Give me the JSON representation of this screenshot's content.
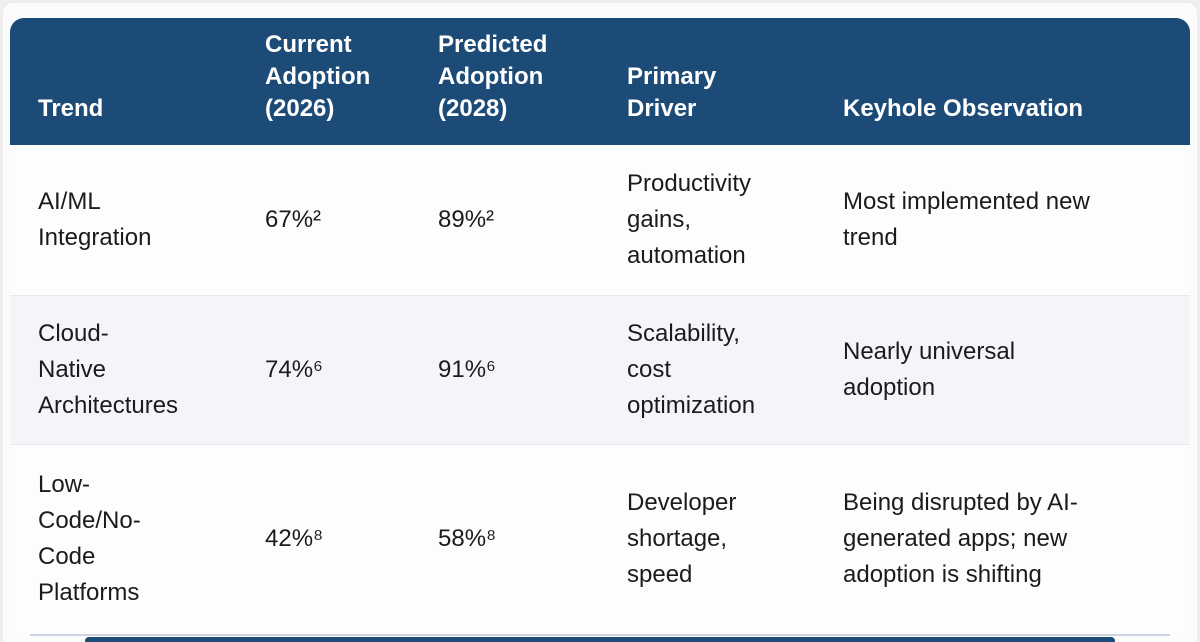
{
  "theme": {
    "header_bg": "#1d4b78",
    "header_text": "#ffffff",
    "body_text": "#1b1b1b",
    "row_bg": "#fdfdfd",
    "row_alt_bg": "#f3f5f9",
    "divider": "#ccd3e2",
    "page_bg": "#efedee"
  },
  "table": {
    "columns": [
      {
        "id": "trend",
        "label": "Trend"
      },
      {
        "id": "current",
        "label": "Current\nAdoption\n(2026)"
      },
      {
        "id": "predicted",
        "label": "Predicted\nAdoption\n(2028)"
      },
      {
        "id": "driver",
        "label": "Primary\nDriver"
      },
      {
        "id": "observation",
        "label": "Keyhole Observation"
      }
    ],
    "rows": [
      {
        "trend": "AI/ML\nIntegration",
        "current": "67%²",
        "predicted": "89%²",
        "driver": "Productivity\ngains,\nautomation",
        "observation": "Most implemented new\ntrend"
      },
      {
        "trend": "Cloud-\nNative\nArchitectures",
        "current": "74%⁶",
        "predicted": "91%⁶",
        "driver": "Scalability,\ncost\noptimization",
        "observation": "Nearly universal\nadoption"
      },
      {
        "trend": "Low-\nCode/No-\nCode\nPlatforms",
        "current": "42%⁸",
        "predicted": "58%⁸",
        "driver": "Developer\nshortage,\nspeed",
        "observation": "Being disrupted by AI-\ngenerated apps; new\nadoption is shifting"
      }
    ]
  }
}
